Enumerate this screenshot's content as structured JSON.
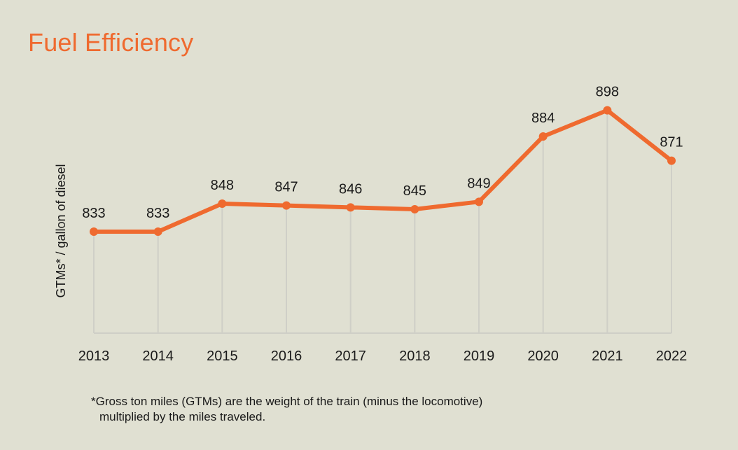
{
  "chart_data": {
    "type": "line",
    "title": "Fuel Efficiency",
    "ylabel": "GTMs* / gallon of diesel",
    "xlabel": "",
    "categories": [
      "2013",
      "2014",
      "2015",
      "2016",
      "2017",
      "2018",
      "2019",
      "2020",
      "2021",
      "2022"
    ],
    "series": [
      {
        "values": [
          833,
          833,
          848,
          847,
          846,
          845,
          849,
          884,
          898,
          871
        ]
      }
    ],
    "data_labels": [
      "833",
      "833",
      "848",
      "847",
      "846",
      "845",
      "849",
      "884",
      "898",
      "871"
    ],
    "grid": "vertical",
    "line_color": "#ef6a2f",
    "title_color": "#ef6a2f",
    "background": "#e0e0d2",
    "gridline_color": "#cfcfc7"
  },
  "footnote": {
    "line1": "*Gross ton miles (GTMs) are the weight of the train (minus the locomotive)",
    "line2": "multiplied by the miles traveled."
  }
}
